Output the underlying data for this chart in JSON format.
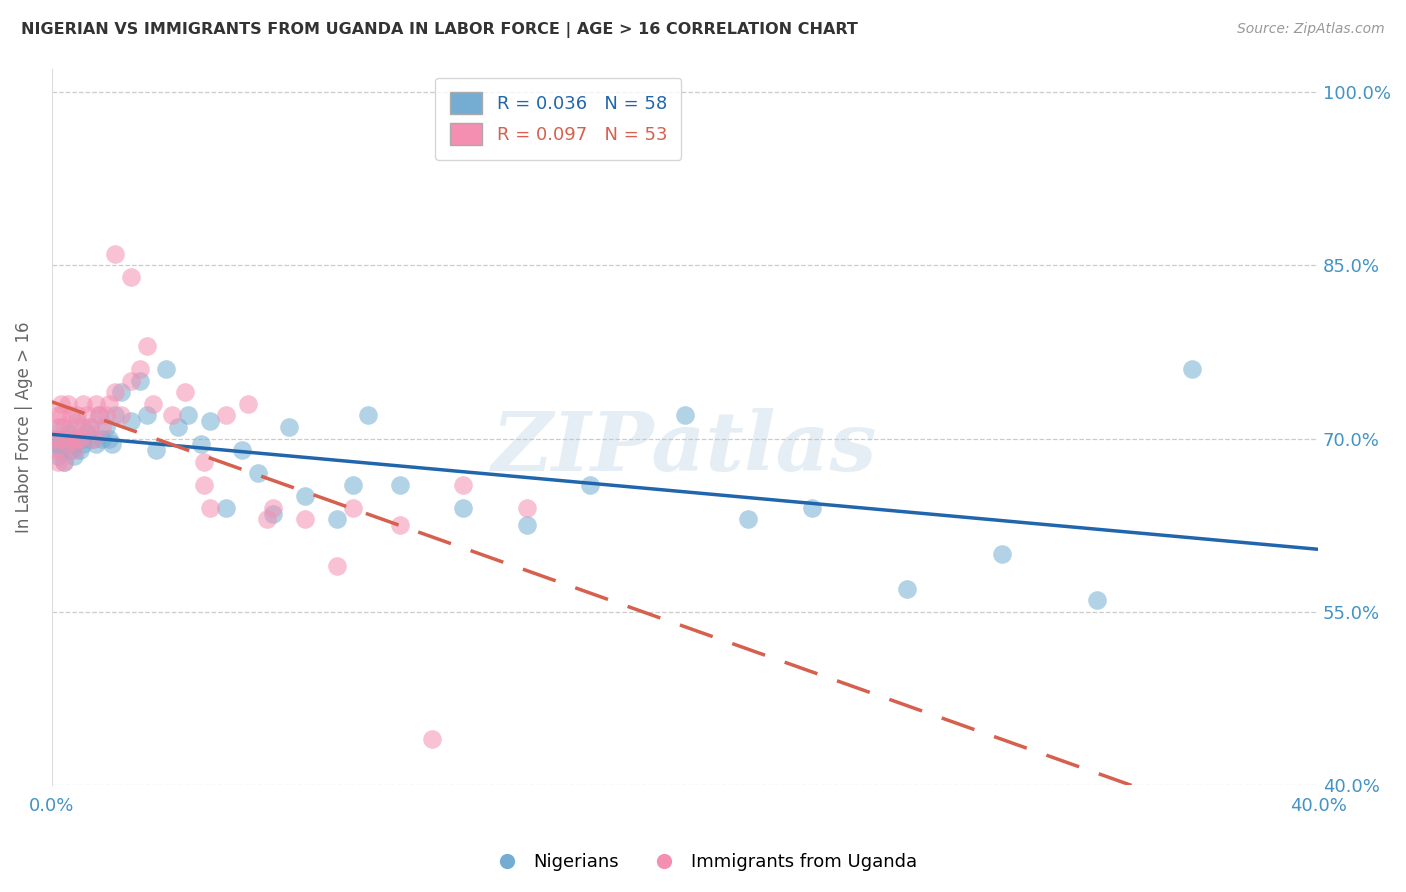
{
  "title": "NIGERIAN VS IMMIGRANTS FROM UGANDA IN LABOR FORCE | AGE > 16 CORRELATION CHART",
  "source": "Source: ZipAtlas.com",
  "ylabel": "In Labor Force | Age > 16",
  "xlabel": "",
  "xlim": [
    0.0,
    0.4
  ],
  "ylim": [
    0.4,
    1.02
  ],
  "xticks": [
    0.0,
    0.05,
    0.1,
    0.15,
    0.2,
    0.25,
    0.3,
    0.35,
    0.4
  ],
  "xtick_labels": [
    "0.0%",
    "",
    "",
    "",
    "",
    "",
    "",
    "",
    "40.0%"
  ],
  "yticks": [
    0.4,
    0.55,
    0.7,
    0.85,
    1.0
  ],
  "ytick_labels": [
    "40.0%",
    "55.0%",
    "70.0%",
    "85.0%",
    "100.0%"
  ],
  "blue_color": "#92c5de",
  "pink_color": "#f4a582",
  "blue_scatter_color": "#74add1",
  "pink_scatter_color": "#f48fb1",
  "blue_line_color": "#2166ac",
  "pink_line_color": "#d6604d",
  "label_color": "#4393c3",
  "R_blue": 0.036,
  "N_blue": 58,
  "R_pink": 0.097,
  "N_pink": 53,
  "blue_x": [
    0.001,
    0.002,
    0.002,
    0.003,
    0.003,
    0.004,
    0.004,
    0.005,
    0.005,
    0.006,
    0.006,
    0.007,
    0.007,
    0.008,
    0.008,
    0.009,
    0.01,
    0.01,
    0.011,
    0.012,
    0.013,
    0.014,
    0.015,
    0.016,
    0.017,
    0.018,
    0.019,
    0.02,
    0.022,
    0.025,
    0.028,
    0.03,
    0.033,
    0.036,
    0.04,
    0.043,
    0.047,
    0.05,
    0.055,
    0.06,
    0.065,
    0.07,
    0.075,
    0.08,
    0.09,
    0.095,
    0.1,
    0.11,
    0.13,
    0.15,
    0.17,
    0.2,
    0.22,
    0.24,
    0.27,
    0.3,
    0.33,
    0.36
  ],
  "blue_y": [
    0.7,
    0.695,
    0.685,
    0.71,
    0.69,
    0.7,
    0.68,
    0.695,
    0.705,
    0.69,
    0.7,
    0.695,
    0.685,
    0.7,
    0.715,
    0.69,
    0.7,
    0.695,
    0.705,
    0.71,
    0.7,
    0.695,
    0.72,
    0.7,
    0.71,
    0.7,
    0.695,
    0.72,
    0.74,
    0.715,
    0.75,
    0.72,
    0.69,
    0.76,
    0.71,
    0.72,
    0.695,
    0.715,
    0.64,
    0.69,
    0.67,
    0.635,
    0.71,
    0.65,
    0.63,
    0.66,
    0.72,
    0.66,
    0.64,
    0.625,
    0.66,
    0.72,
    0.63,
    0.64,
    0.57,
    0.6,
    0.56,
    0.76
  ],
  "pink_x": [
    0.001,
    0.001,
    0.002,
    0.002,
    0.002,
    0.003,
    0.003,
    0.003,
    0.004,
    0.004,
    0.005,
    0.005,
    0.006,
    0.006,
    0.007,
    0.007,
    0.008,
    0.008,
    0.009,
    0.01,
    0.01,
    0.011,
    0.012,
    0.013,
    0.014,
    0.015,
    0.016,
    0.017,
    0.018,
    0.02,
    0.022,
    0.025,
    0.028,
    0.032,
    0.038,
    0.042,
    0.048,
    0.055,
    0.062,
    0.07,
    0.08,
    0.095,
    0.11,
    0.13,
    0.15,
    0.02,
    0.025,
    0.03,
    0.05,
    0.068,
    0.09,
    0.12,
    0.048
  ],
  "pink_y": [
    0.7,
    0.69,
    0.72,
    0.71,
    0.68,
    0.73,
    0.7,
    0.72,
    0.71,
    0.68,
    0.73,
    0.695,
    0.7,
    0.72,
    0.71,
    0.69,
    0.7,
    0.72,
    0.7,
    0.71,
    0.73,
    0.72,
    0.71,
    0.7,
    0.73,
    0.72,
    0.71,
    0.72,
    0.73,
    0.74,
    0.72,
    0.75,
    0.76,
    0.73,
    0.72,
    0.74,
    0.68,
    0.72,
    0.73,
    0.64,
    0.63,
    0.64,
    0.625,
    0.66,
    0.64,
    0.86,
    0.84,
    0.78,
    0.64,
    0.63,
    0.59,
    0.44,
    0.66
  ],
  "watermark": "ZIPatlas",
  "background_color": "#ffffff",
  "grid_color": "#cccccc"
}
